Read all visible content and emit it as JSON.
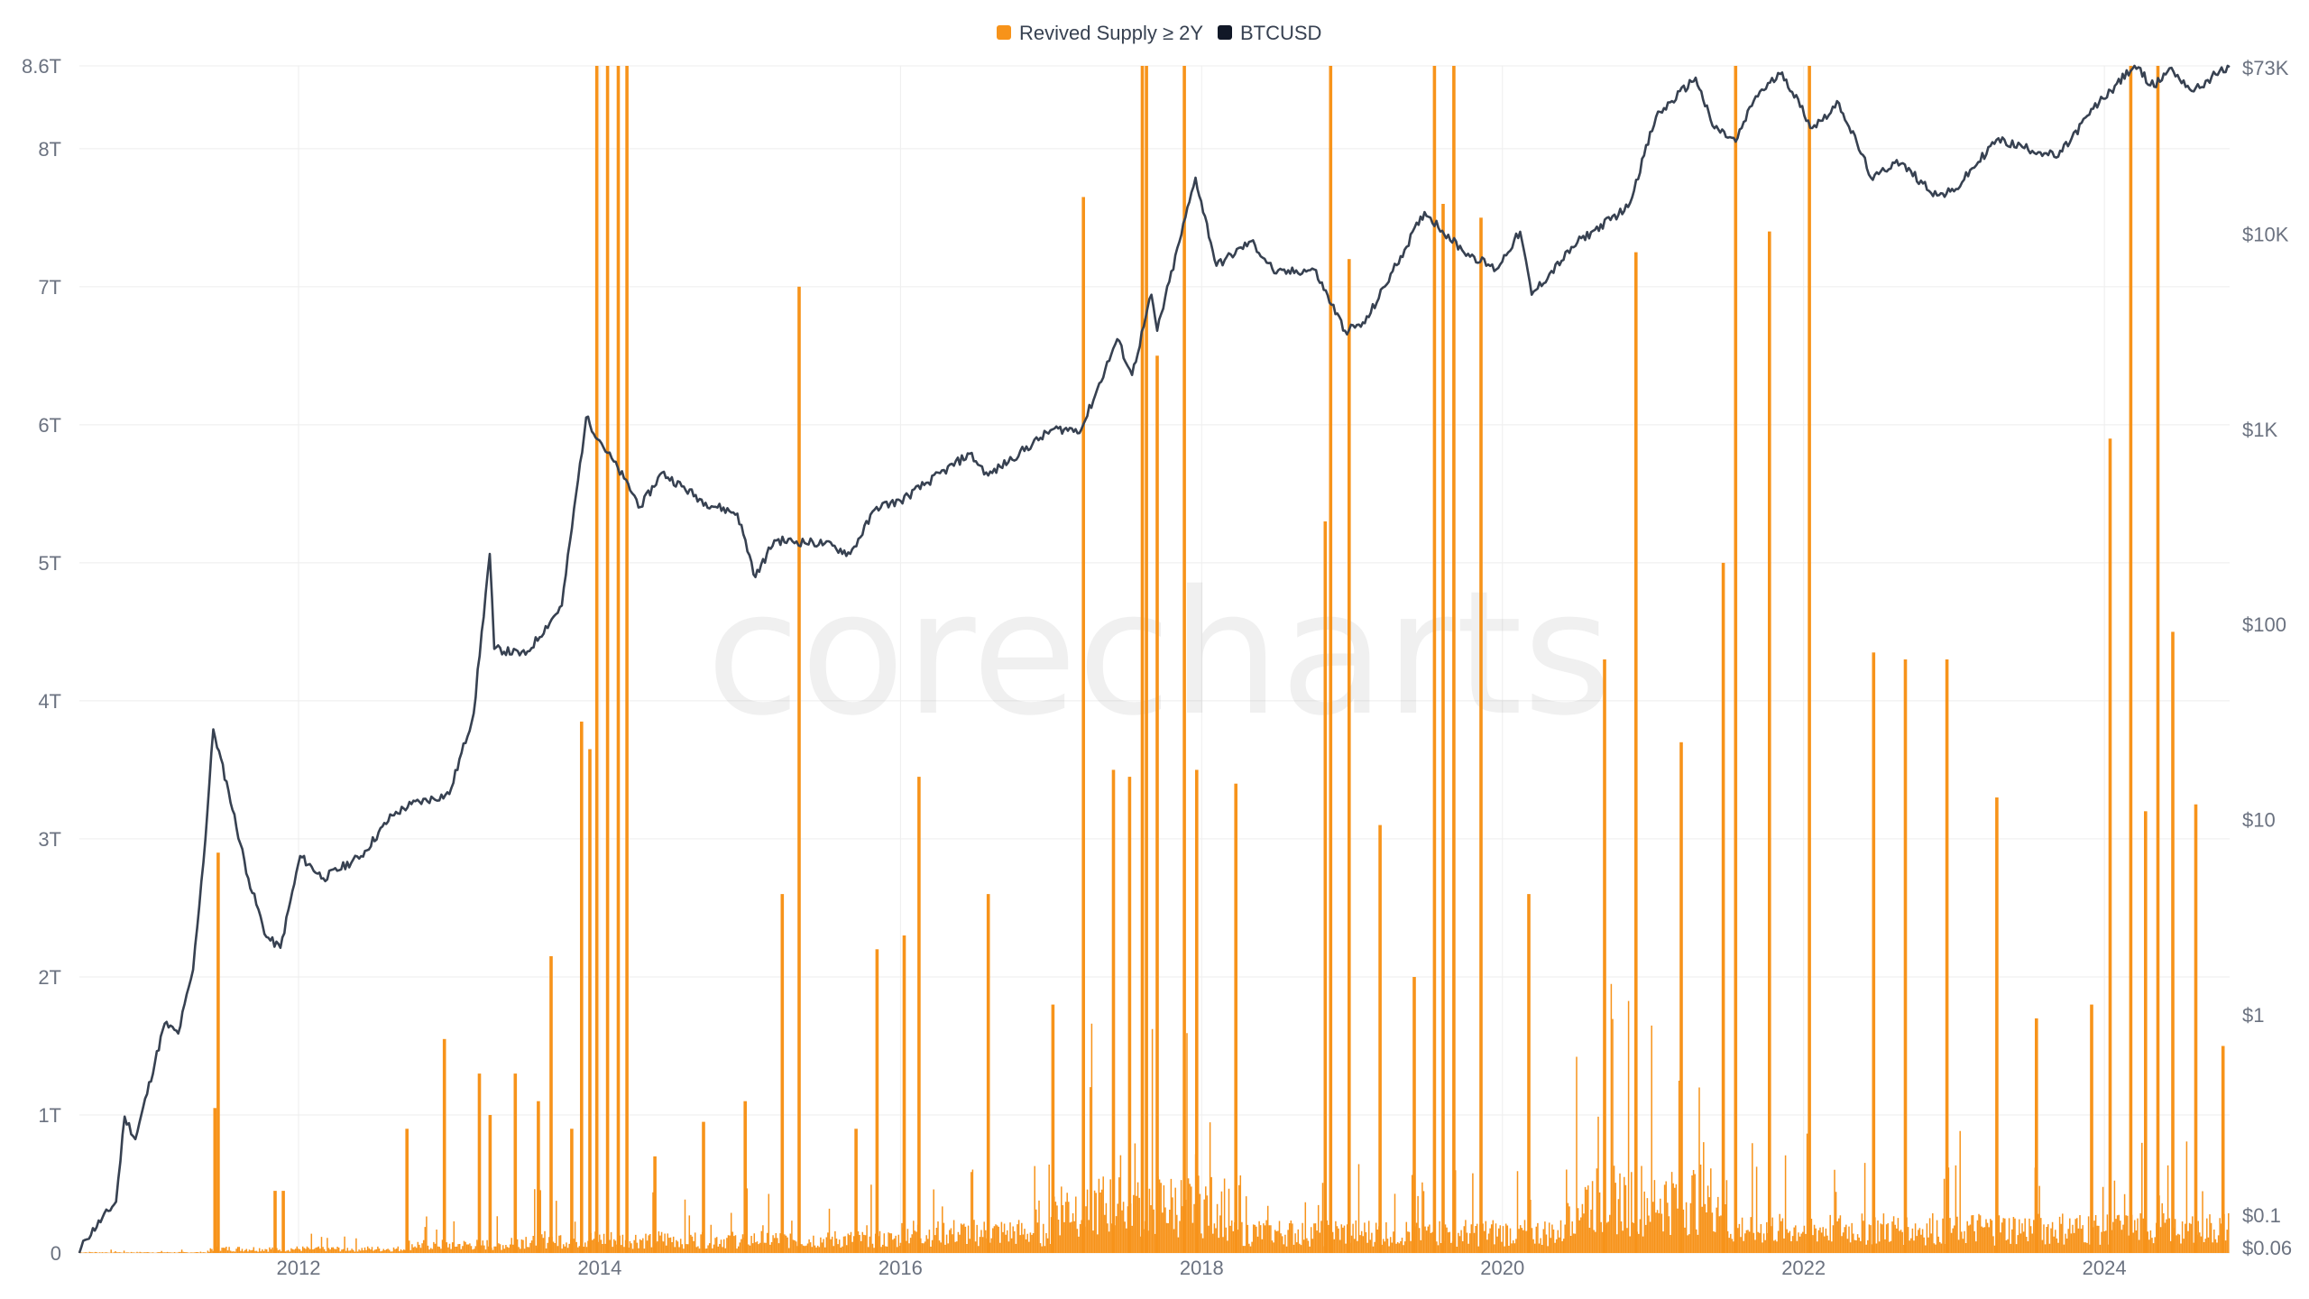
{
  "chart_data": {
    "type": "bar",
    "watermark": "corecharts",
    "legend": {
      "placement": "top-center",
      "entries": [
        {
          "name": "Revived Supply ≥ 2Y",
          "color": "#f7931a"
        },
        {
          "name": "BTCUSD",
          "color": "#111827"
        }
      ]
    },
    "x_axis": {
      "range": [
        "2010-07-18",
        "2024-10-31"
      ],
      "tick_labels": [
        "2012",
        "2014",
        "2016",
        "2018",
        "2020",
        "2022",
        "2024"
      ],
      "tick_values": [
        "2012-01-01",
        "2014-01-01",
        "2016-01-01",
        "2018-01-01",
        "2020-01-01",
        "2022-01-01",
        "2024-01-01"
      ]
    },
    "y_left": {
      "ylim": [
        0,
        8.6
      ],
      "unit": "T",
      "tick_labels": [
        "0",
        "1T",
        "2T",
        "3T",
        "4T",
        "5T",
        "6T",
        "7T",
        "8T",
        "8.6T"
      ],
      "tick_values": [
        0,
        1,
        2,
        3,
        4,
        5,
        6,
        7,
        8,
        8.6
      ]
    },
    "y_right": {
      "scale": "log",
      "ylim": [
        0.06,
        73000
      ],
      "tick_labels": [
        "$0.06",
        "$0.1",
        "$1",
        "$10",
        "$100",
        "$1K",
        "$10K",
        "$73K"
      ],
      "tick_values": [
        0.06,
        0.1,
        1,
        10,
        100,
        1000,
        10000,
        73000
      ]
    },
    "grid": true,
    "series": [
      {
        "name": "Revived Supply ≥ 2Y",
        "type": "bar",
        "axis": "left",
        "color": "#f7931a",
        "baseline_segments": [
          {
            "x": [
              "2010-07-18",
              "2011-06-01"
            ],
            "y": 0.005
          },
          {
            "x": [
              "2011-06-01",
              "2012-09-15"
            ],
            "y": 0.03
          },
          {
            "x": [
              "2012-09-15",
              "2013-06-01"
            ],
            "y": 0.06
          },
          {
            "x": [
              "2013-06-01",
              "2014-06-01"
            ],
            "y": 0.1
          },
          {
            "x": [
              "2014-06-01",
              "2016-01-01"
            ],
            "y": 0.1
          },
          {
            "x": [
              "2016-01-01",
              "2017-01-01"
            ],
            "y": 0.15
          },
          {
            "x": [
              "2017-01-01",
              "2018-03-01"
            ],
            "y": 0.35
          },
          {
            "x": [
              "2018-03-01",
              "2020-06-01"
            ],
            "y": 0.15
          },
          {
            "x": [
              "2020-06-01",
              "2021-07-01"
            ],
            "y": 0.4
          },
          {
            "x": [
              "2021-07-01",
              "2024-10-31"
            ],
            "y": 0.18
          }
        ],
        "spikes": [
          {
            "x": "2011-06-12",
            "y": 1.05
          },
          {
            "x": "2011-06-20",
            "y": 2.9
          },
          {
            "x": "2011-11-05",
            "y": 0.45
          },
          {
            "x": "2011-11-25",
            "y": 0.45
          },
          {
            "x": "2012-09-20",
            "y": 0.9
          },
          {
            "x": "2012-12-20",
            "y": 1.55
          },
          {
            "x": "2013-03-15",
            "y": 1.3
          },
          {
            "x": "2013-04-10",
            "y": 1.0
          },
          {
            "x": "2013-06-10",
            "y": 1.3
          },
          {
            "x": "2013-08-05",
            "y": 1.1
          },
          {
            "x": "2013-09-05",
            "y": 2.15
          },
          {
            "x": "2013-10-25",
            "y": 0.9
          },
          {
            "x": "2013-11-18",
            "y": 3.85
          },
          {
            "x": "2013-12-08",
            "y": 3.65
          },
          {
            "x": "2013-12-25",
            "y": 8.6
          },
          {
            "x": "2014-01-20",
            "y": 8.6
          },
          {
            "x": "2014-02-15",
            "y": 8.6
          },
          {
            "x": "2014-03-08",
            "y": 8.6
          },
          {
            "x": "2014-05-15",
            "y": 0.7
          },
          {
            "x": "2014-09-10",
            "y": 0.95
          },
          {
            "x": "2014-12-20",
            "y": 1.1
          },
          {
            "x": "2015-03-20",
            "y": 2.6
          },
          {
            "x": "2015-04-30",
            "y": 7.0
          },
          {
            "x": "2015-09-15",
            "y": 0.9
          },
          {
            "x": "2015-11-05",
            "y": 2.2
          },
          {
            "x": "2016-01-10",
            "y": 2.3
          },
          {
            "x": "2016-02-15",
            "y": 3.45
          },
          {
            "x": "2016-08-01",
            "y": 2.6
          },
          {
            "x": "2017-01-05",
            "y": 1.8
          },
          {
            "x": "2017-03-20",
            "y": 7.65
          },
          {
            "x": "2017-06-01",
            "y": 3.5
          },
          {
            "x": "2017-07-10",
            "y": 3.45
          },
          {
            "x": "2017-08-10",
            "y": 8.6
          },
          {
            "x": "2017-08-20",
            "y": 8.6
          },
          {
            "x": "2017-09-15",
            "y": 6.5
          },
          {
            "x": "2017-11-20",
            "y": 8.6
          },
          {
            "x": "2017-12-20",
            "y": 3.5
          },
          {
            "x": "2018-03-25",
            "y": 3.4
          },
          {
            "x": "2018-10-28",
            "y": 5.3
          },
          {
            "x": "2018-11-10",
            "y": 8.6
          },
          {
            "x": "2018-12-25",
            "y": 7.2
          },
          {
            "x": "2019-03-10",
            "y": 3.1
          },
          {
            "x": "2019-06-01",
            "y": 2.0
          },
          {
            "x": "2019-07-20",
            "y": 8.6
          },
          {
            "x": "2019-08-10",
            "y": 7.6
          },
          {
            "x": "2019-09-05",
            "y": 8.6
          },
          {
            "x": "2019-11-10",
            "y": 7.5
          },
          {
            "x": "2020-03-05",
            "y": 2.6
          },
          {
            "x": "2020-09-05",
            "y": 4.3
          },
          {
            "x": "2020-11-20",
            "y": 7.25
          },
          {
            "x": "2021-03-10",
            "y": 3.7
          },
          {
            "x": "2021-06-20",
            "y": 5.0
          },
          {
            "x": "2021-07-20",
            "y": 8.6
          },
          {
            "x": "2021-10-10",
            "y": 7.4
          },
          {
            "x": "2022-01-15",
            "y": 8.6
          },
          {
            "x": "2022-06-20",
            "y": 4.35
          },
          {
            "x": "2022-09-05",
            "y": 4.3
          },
          {
            "x": "2022-12-15",
            "y": 4.3
          },
          {
            "x": "2023-04-15",
            "y": 3.3
          },
          {
            "x": "2023-07-20",
            "y": 1.7
          },
          {
            "x": "2023-12-01",
            "y": 1.8
          },
          {
            "x": "2024-01-15",
            "y": 5.9
          },
          {
            "x": "2024-03-05",
            "y": 8.6
          },
          {
            "x": "2024-04-10",
            "y": 3.2
          },
          {
            "x": "2024-05-10",
            "y": 8.6
          },
          {
            "x": "2024-06-15",
            "y": 4.5
          },
          {
            "x": "2024-08-10",
            "y": 3.25
          },
          {
            "x": "2024-10-15",
            "y": 1.5
          }
        ]
      },
      {
        "name": "BTCUSD",
        "type": "line",
        "axis": "right",
        "color": "#374151",
        "x": [
          "2010-07-18",
          "2010-08-01",
          "2010-10-15",
          "2010-11-05",
          "2010-12-01",
          "2011-02-10",
          "2011-03-15",
          "2011-04-20",
          "2011-05-20",
          "2011-06-08",
          "2011-07-15",
          "2011-09-01",
          "2011-10-15",
          "2011-11-18",
          "2012-01-05",
          "2012-03-01",
          "2012-06-01",
          "2012-08-15",
          "2012-10-01",
          "2013-01-01",
          "2013-03-01",
          "2013-04-09",
          "2013-04-20",
          "2013-07-05",
          "2013-10-01",
          "2013-11-29",
          "2014-01-05",
          "2014-03-01",
          "2014-04-10",
          "2014-06-01",
          "2014-09-15",
          "2014-12-01",
          "2015-01-14",
          "2015-03-01",
          "2015-07-01",
          "2015-09-01",
          "2015-11-04",
          "2016-01-01",
          "2016-06-17",
          "2016-08-01",
          "2017-01-04",
          "2017-03-15",
          "2017-06-10",
          "2017-07-16",
          "2017-09-01",
          "2017-09-15",
          "2017-12-17",
          "2018-02-06",
          "2018-05-01",
          "2018-07-01",
          "2018-10-01",
          "2018-12-15",
          "2019-02-01",
          "2019-06-26",
          "2019-09-25",
          "2019-12-17",
          "2020-02-13",
          "2020-03-12",
          "2020-07-01",
          "2020-11-01",
          "2021-01-08",
          "2021-04-14",
          "2021-05-25",
          "2021-07-20",
          "2021-09-07",
          "2021-11-10",
          "2022-01-22",
          "2022-03-28",
          "2022-06-18",
          "2022-08-15",
          "2022-11-21",
          "2023-01-01",
          "2023-04-14",
          "2023-09-11",
          "2023-12-05",
          "2024-03-14",
          "2024-05-01",
          "2024-06-07",
          "2024-08-05",
          "2024-09-27",
          "2024-10-31"
        ],
        "y": [
          0.06,
          0.07,
          0.11,
          0.3,
          0.23,
          0.9,
          0.8,
          1.7,
          8.0,
          29.0,
          14.0,
          5.0,
          2.5,
          2.2,
          6.5,
          5.0,
          6.5,
          10.5,
          12.0,
          13.5,
          35.0,
          230.0,
          75.0,
          70.0,
          125.0,
          1150.0,
          850.0,
          560.0,
          400.0,
          600.0,
          420.0,
          370.0,
          175.0,
          270.0,
          260.0,
          230.0,
          400.0,
          430.0,
          750.0,
          580.0,
          1000.0,
          1000.0,
          2900.0,
          1900.0,
          4900.0,
          3200.0,
          19500.0,
          6900.0,
          9200.0,
          6300.0,
          6600.0,
          3200.0,
          3500.0,
          13000.0,
          8300.0,
          6600.0,
          10300.0,
          4900.0,
          9100.0,
          13800.0,
          40000.0,
          63500.0,
          36000.0,
          29800.0,
          51000.0,
          67500.0,
          35000.0,
          47000.0,
          19000.0,
          24000.0,
          15800.0,
          16600.0,
          30500.0,
          25000.0,
          44000.0,
          73000.0,
          57000.0,
          71000.0,
          54000.0,
          66000.0,
          72000.0
        ]
      }
    ]
  }
}
